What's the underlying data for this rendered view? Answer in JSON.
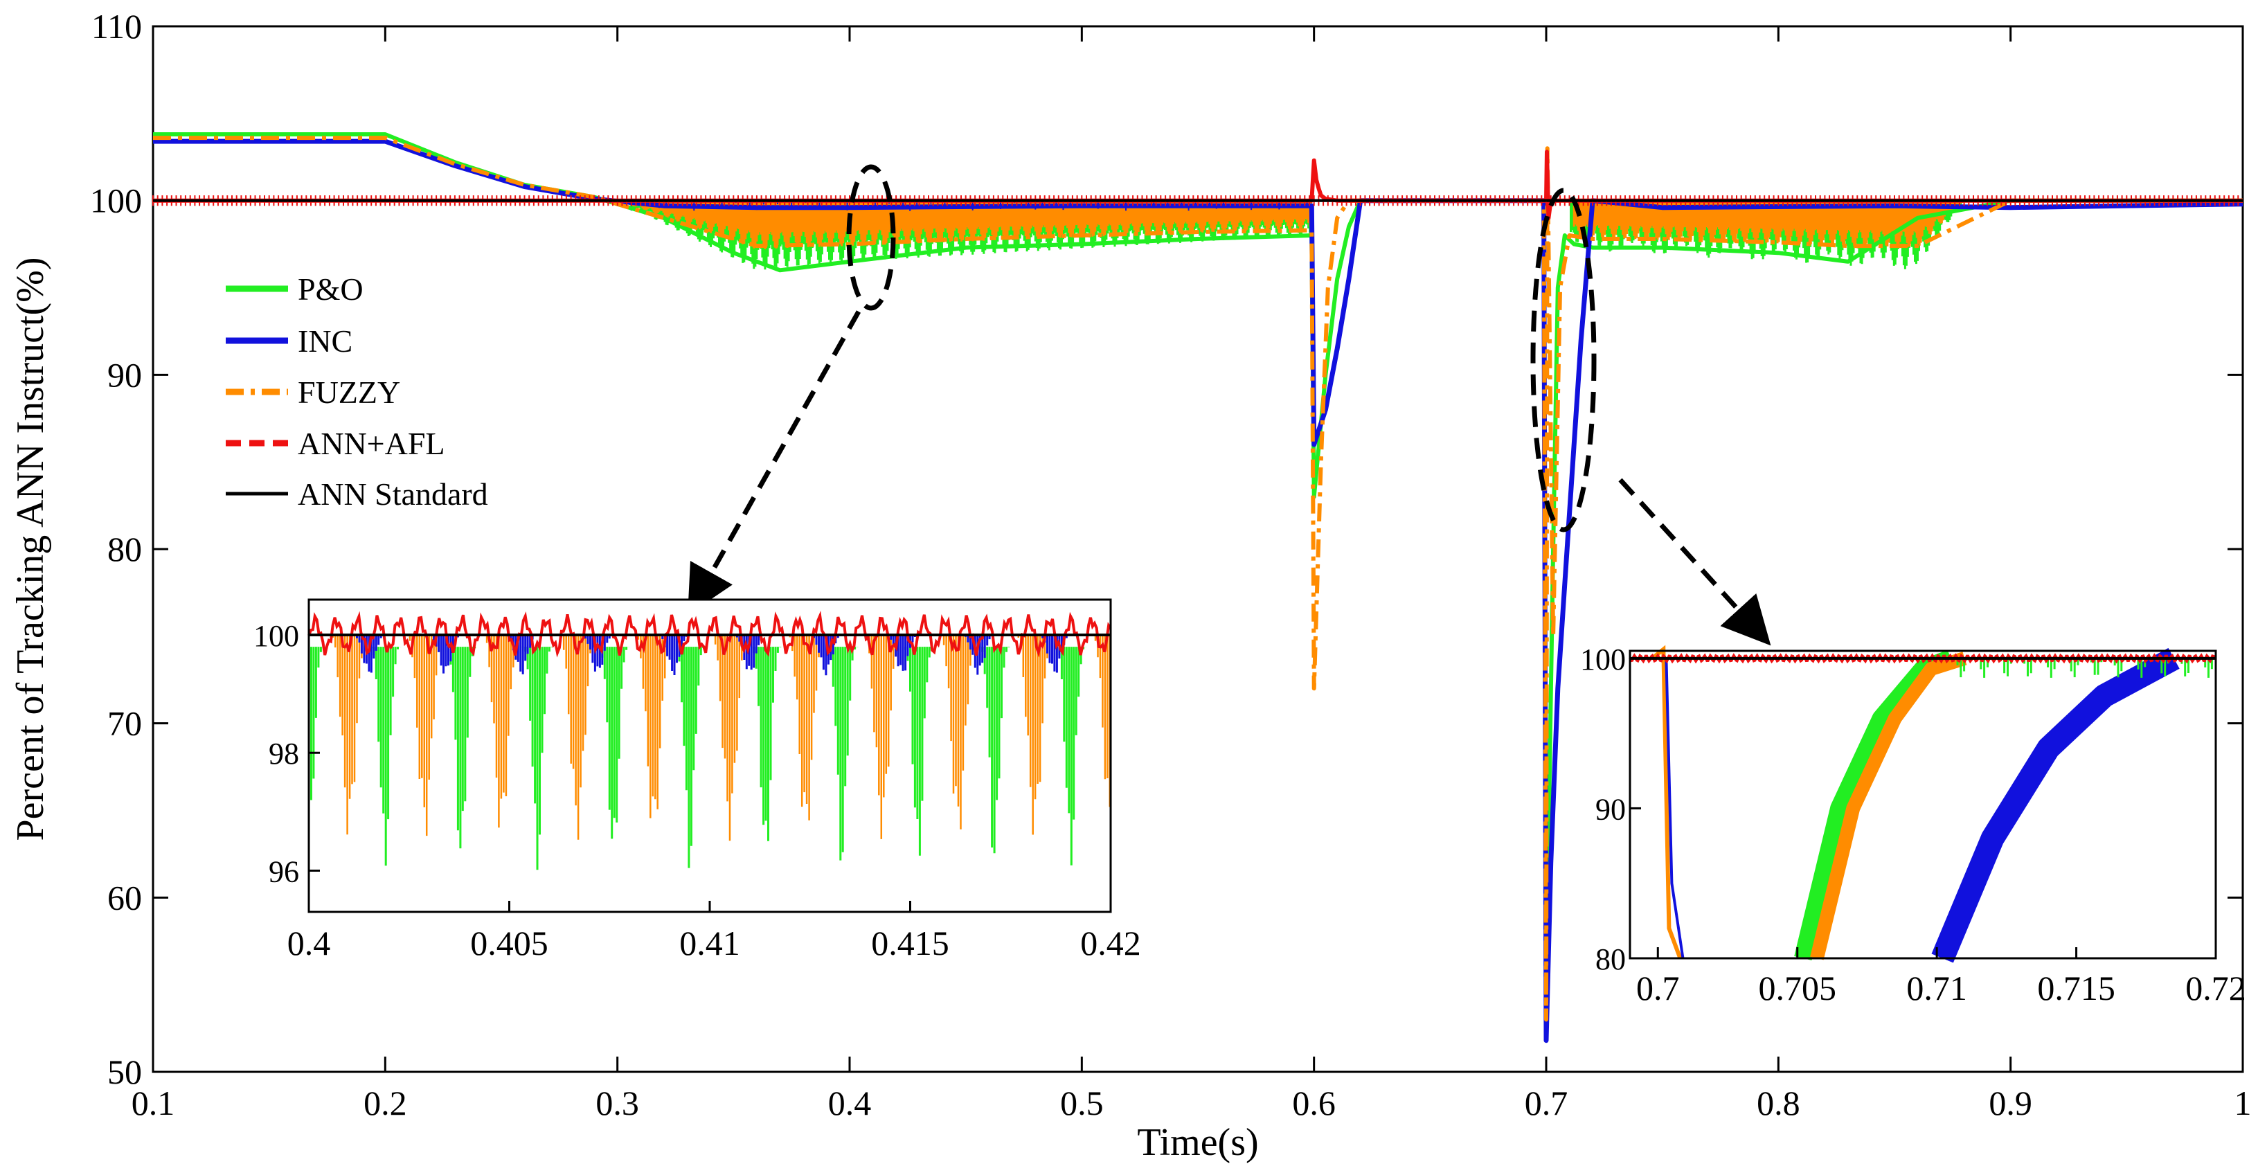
{
  "chart_data": {
    "type": "line",
    "title": "",
    "xlabel": "Time(s)",
    "ylabel": "Percent of Tracking ANN Instruct(%)",
    "xlim": [
      0.1,
      1.0
    ],
    "ylim": [
      50,
      110
    ],
    "xticks": [
      "0.1",
      "0.2",
      "0.3",
      "0.4",
      "0.5",
      "0.6",
      "0.7",
      "0.8",
      "0.9",
      "1"
    ],
    "yticks": [
      "50",
      "60",
      "70",
      "80",
      "90",
      "100",
      "110"
    ],
    "legend_position": "left",
    "colors": {
      "po": "#22ee22",
      "inc": "#1111dd",
      "fuzzy": "#ff8c00",
      "ann_afl": "#ee1111",
      "ann_standard": "#000000"
    },
    "series": [
      {
        "name": "P&O",
        "key": "po",
        "dash": "solid",
        "x": [
          0.1,
          0.2,
          0.23,
          0.26,
          0.29,
          0.32,
          0.35,
          0.37,
          0.4,
          0.45,
          0.5,
          0.55,
          0.599,
          0.6,
          0.605,
          0.61,
          0.615,
          0.62,
          0.65,
          0.699,
          0.7,
          0.703,
          0.705,
          0.708,
          0.712,
          0.72,
          0.75,
          0.8,
          0.83,
          0.86,
          0.9,
          1.0
        ],
        "y": [
          103.8,
          103.8,
          102.2,
          100.9,
          100.2,
          99.0,
          97.0,
          96.0,
          96.5,
          97.3,
          97.5,
          97.8,
          98.0,
          83.0,
          90.0,
          95.5,
          98.5,
          100.0,
          100.0,
          100.0,
          55.0,
          80.0,
          95.0,
          98.0,
          97.5,
          97.3,
          97.3,
          97.0,
          96.5,
          99.0,
          100.0,
          100.0
        ]
      },
      {
        "name": "INC",
        "key": "inc",
        "dash": "solid",
        "x": [
          0.1,
          0.2,
          0.23,
          0.26,
          0.29,
          0.32,
          0.36,
          0.4,
          0.5,
          0.599,
          0.6,
          0.605,
          0.61,
          0.615,
          0.62,
          0.65,
          0.699,
          0.7,
          0.702,
          0.705,
          0.71,
          0.715,
          0.72,
          0.75,
          0.85,
          0.9,
          1.0
        ],
        "y": [
          103.4,
          103.4,
          102.0,
          100.8,
          100.1,
          99.7,
          99.6,
          99.6,
          99.7,
          99.7,
          86.0,
          88.0,
          91.5,
          95.5,
          100.0,
          100.0,
          100.0,
          51.8,
          62.0,
          72.0,
          82.0,
          92.0,
          100.0,
          99.6,
          99.7,
          99.6,
          99.8
        ]
      },
      {
        "name": "FUZZY",
        "key": "fuzzy",
        "dash": "dashdot",
        "x": [
          0.1,
          0.2,
          0.23,
          0.26,
          0.29,
          0.32,
          0.36,
          0.4,
          0.45,
          0.5,
          0.55,
          0.599,
          0.6,
          0.603,
          0.606,
          0.61,
          0.615,
          0.65,
          0.699,
          0.7,
          0.7005,
          0.703,
          0.706,
          0.71,
          0.72,
          0.75,
          0.8,
          0.83,
          0.86,
          0.9,
          1.0
        ],
        "y": [
          103.6,
          103.6,
          102.1,
          100.9,
          100.2,
          99.0,
          97.4,
          97.5,
          97.8,
          98.0,
          98.2,
          98.3,
          72.0,
          85.0,
          95.0,
          99.0,
          100.0,
          100.0,
          100.0,
          53.0,
          103.0,
          75.0,
          95.0,
          98.0,
          97.8,
          97.8,
          97.6,
          97.4,
          97.4,
          100.0,
          100.0
        ]
      },
      {
        "name": "ANN+AFL",
        "key": "ann_afl",
        "dash": "dashed",
        "x": [
          0.1,
          0.599,
          0.6,
          0.601,
          0.602,
          0.603,
          0.605,
          0.61,
          0.7,
          0.7003,
          0.701,
          0.702,
          1.0
        ],
        "y": [
          100.0,
          100.0,
          102.3,
          101.2,
          100.7,
          100.3,
          100.1,
          100.0,
          100.0,
          102.8,
          99.0,
          100.0,
          100.0
        ]
      },
      {
        "name": "ANN Standard",
        "key": "ann_standard",
        "dash": "solid",
        "x": [
          0.1,
          1.0
        ],
        "y": [
          100.0,
          100.0
        ]
      }
    ],
    "insets": [
      {
        "name": "inset-zoom-04",
        "xlim": [
          0.4,
          0.42
        ],
        "ylim": [
          95.3,
          100.6
        ],
        "xticks": [
          "0.4",
          "0.405",
          "0.41",
          "0.415",
          "0.42"
        ],
        "yticks": [
          "96",
          "98",
          "100"
        ],
        "period": 0.0019,
        "min_values": {
          "po": 95.9,
          "inc": 99.3,
          "fuzzy": 96.5,
          "ann_afl": 99.8
        },
        "max_values": {
          "po": 99.8,
          "inc": 100.0,
          "fuzzy": 100.0,
          "ann_afl": 100.4
        }
      },
      {
        "name": "inset-zoom-07",
        "xlim": [
          0.699,
          0.72
        ],
        "ylim": [
          80,
          100.5
        ],
        "xticks": [
          "0.7",
          "0.705",
          "0.71",
          "0.715",
          "0.72"
        ],
        "yticks": [
          "80",
          "90",
          "100"
        ],
        "recovery_points": {
          "po": {
            "x": [
              0.7052,
              0.7065,
              0.708,
              0.7095,
              0.7105
            ],
            "y": [
              80,
              90,
              96,
              99.3,
              100
            ]
          },
          "fuzzy": {
            "x": [
              0.7057,
              0.707,
              0.7085,
              0.7098,
              0.711
            ],
            "y": [
              80,
              90,
              96,
              99.3,
              100
            ]
          },
          "inc": {
            "x": [
              0.7102,
              0.712,
              0.714,
              0.716,
              0.718,
              0.7185
            ],
            "y": [
              80,
              88,
              94,
              97.5,
              99.5,
              100
            ]
          },
          "ann_afl": {
            "x": [
              0.699,
              0.72
            ],
            "y": [
              100,
              100
            ]
          }
        }
      }
    ]
  }
}
